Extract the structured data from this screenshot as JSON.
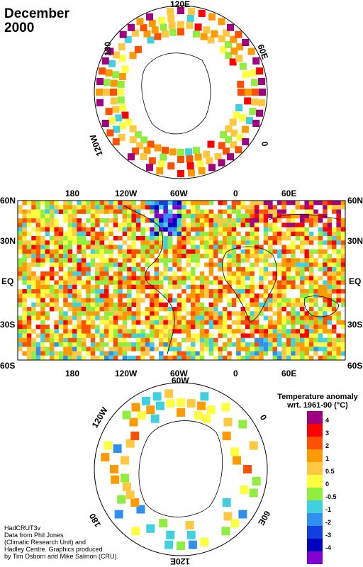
{
  "header": {
    "title_line1": "December",
    "title_line2": "2000"
  },
  "north_polar": {
    "labels": {
      "top": "120E",
      "left": "180",
      "right_upper": "60E",
      "right_lower": "0",
      "left_lower": "120W"
    }
  },
  "world_map": {
    "lat_labels_left": [
      "60N",
      "30N",
      "EQ",
      "30S",
      "60S"
    ],
    "lat_labels_right": [
      "60N",
      "30N",
      "EQ",
      "30S",
      "60S"
    ],
    "lon_labels_top": [
      "180",
      "120W",
      "60W",
      "0",
      "60E"
    ],
    "lon_labels_bottom": [
      "180",
      "120W",
      "60W",
      "0",
      "60E"
    ]
  },
  "south_polar": {
    "labels": {
      "top": "60W",
      "left_upper": "120W",
      "right_upper": "0",
      "left_lower": "180",
      "right_lower": "60E",
      "bottom": "120E"
    }
  },
  "legend": {
    "title_line1": "Temperature anomaly",
    "title_line2": "wrt. 1961-90  (°C)",
    "levels": [
      {
        "label": "4",
        "color": "#a0007f"
      },
      {
        "label": "3",
        "color": "#ff0000"
      },
      {
        "label": "2",
        "color": "#ff5000"
      },
      {
        "label": "1",
        "color": "#ff9a00"
      },
      {
        "label": "0.5",
        "color": "#ffc840"
      },
      {
        "label": "0",
        "color": "#ffff40"
      },
      {
        "label": "-0.5",
        "color": "#90ee40"
      },
      {
        "label": "-1",
        "color": "#40d0e0"
      },
      {
        "label": "-2",
        "color": "#3090f0"
      },
      {
        "label": "-3",
        "color": "#1040e0"
      },
      {
        "label": "-4",
        "color": "#0000c0"
      },
      {
        "label": "",
        "color": "#8000d0"
      }
    ]
  },
  "credit": {
    "line1": "HadCRUT3v",
    "line2": "Data from Phil Jones",
    "line3": "(Climatic Research Unit) and",
    "line4": "Hadley Centre.  Graphics produced",
    "line5": "by Tim Osborn and Mike Salmon (CRU)."
  }
}
